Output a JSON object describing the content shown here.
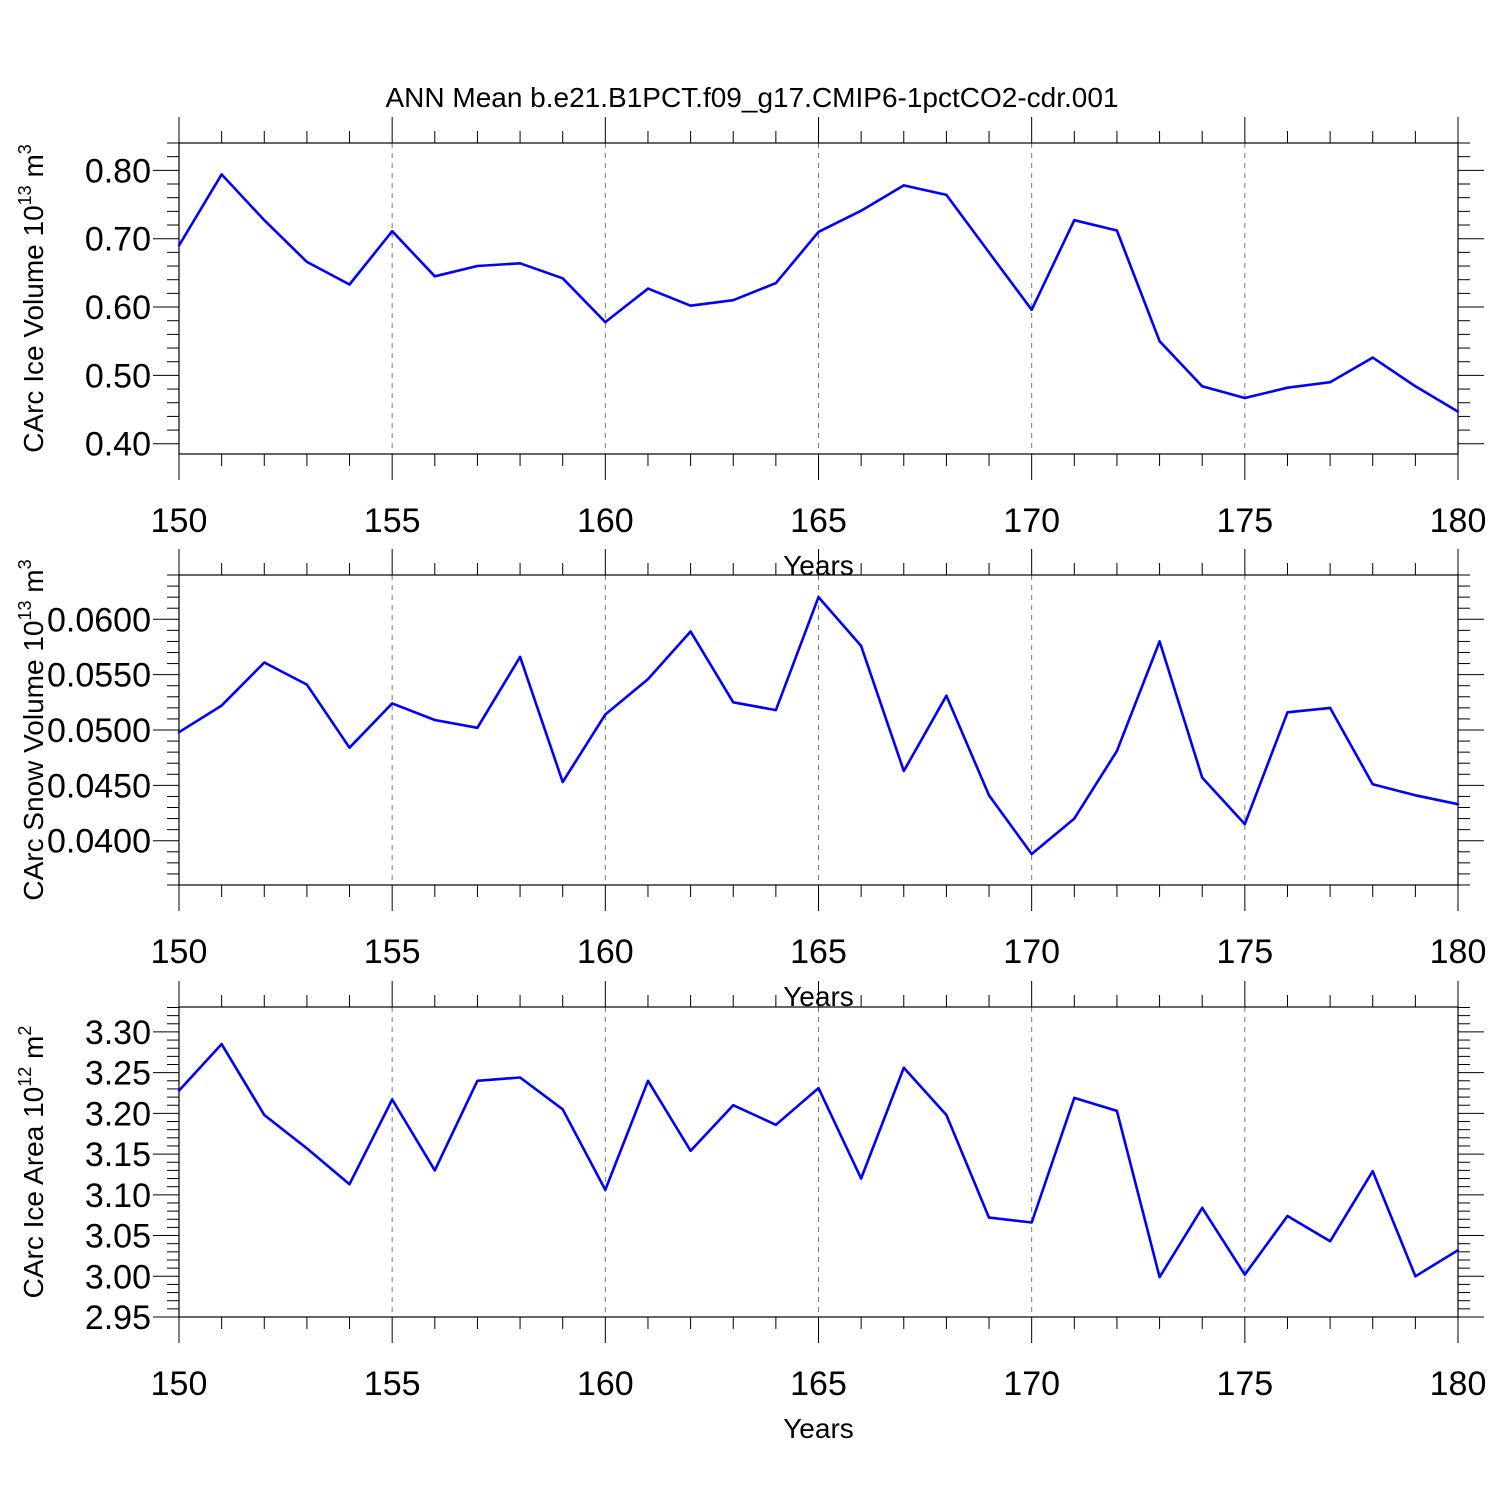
{
  "title": "ANN Mean b.e21.B1PCT.f09_g17.CMIP6-1pctCO2-cdr.001",
  "colors": {
    "line": "#0000ff",
    "grid": "#777777"
  },
  "chart_data": [
    {
      "type": "line",
      "ylabel": "CArc Ice Volume 10",
      "ylabel_sup": "13",
      "ylabel_unit": " m",
      "ylabel_unit_sup": "3",
      "xlabel": "Years",
      "xlim": [
        150,
        180
      ],
      "ylim": [
        0.385,
        0.84
      ],
      "x_ticks": [
        150,
        155,
        160,
        165,
        170,
        175,
        180
      ],
      "x_tick_labels": [
        "150",
        "155",
        "160",
        "165",
        "170",
        "175",
        "180"
      ],
      "y_ticks": [
        0.4,
        0.5,
        0.6,
        0.7,
        0.8
      ],
      "y_tick_labels": [
        "0.40",
        "0.50",
        "0.60",
        "0.70",
        "0.80"
      ],
      "grid_x": true,
      "x": [
        150,
        151,
        152,
        153,
        154,
        155,
        156,
        157,
        158,
        159,
        160,
        161,
        162,
        163,
        164,
        165,
        166,
        167,
        168,
        169,
        170,
        171,
        172,
        173,
        174,
        175,
        176,
        177,
        178,
        179,
        180
      ],
      "values": [
        0.69,
        0.794,
        0.727,
        0.666,
        0.633,
        0.711,
        0.645,
        0.66,
        0.664,
        0.642,
        0.578,
        0.627,
        0.602,
        0.61,
        0.635,
        0.71,
        0.741,
        0.778,
        0.764,
        0.68,
        0.596,
        0.727,
        0.712,
        0.55,
        0.484,
        0.467,
        0.482,
        0.49,
        0.526,
        0.484,
        0.447
      ]
    },
    {
      "type": "line",
      "ylabel": "CArc Snow Volume 10",
      "ylabel_sup": "13",
      "ylabel_unit": " m",
      "ylabel_unit_sup": "3",
      "xlabel": "Years",
      "xlim": [
        150,
        180
      ],
      "ylim": [
        0.036,
        0.064
      ],
      "x_ticks": [
        150,
        155,
        160,
        165,
        170,
        175,
        180
      ],
      "x_tick_labels": [
        "150",
        "155",
        "160",
        "165",
        "170",
        "175",
        "180"
      ],
      "y_ticks": [
        0.04,
        0.045,
        0.05,
        0.055,
        0.06
      ],
      "y_tick_labels": [
        "0.0400",
        "0.0450",
        "0.0500",
        "0.0550",
        "0.0600"
      ],
      "grid_x": true,
      "x": [
        150,
        151,
        152,
        153,
        154,
        155,
        156,
        157,
        158,
        159,
        160,
        161,
        162,
        163,
        164,
        165,
        166,
        167,
        168,
        169,
        170,
        171,
        172,
        173,
        174,
        175,
        176,
        177,
        178,
        179,
        180
      ],
      "values": [
        0.0498,
        0.0522,
        0.0561,
        0.0541,
        0.0484,
        0.0524,
        0.0509,
        0.0502,
        0.0566,
        0.0453,
        0.0514,
        0.0546,
        0.0589,
        0.0525,
        0.0518,
        0.062,
        0.0576,
        0.0463,
        0.0531,
        0.0441,
        0.0388,
        0.042,
        0.0481,
        0.058,
        0.0457,
        0.0415,
        0.0516,
        0.052,
        0.0451,
        0.0441,
        0.0433
      ]
    },
    {
      "type": "line",
      "ylabel": "CArc Ice Area 10",
      "ylabel_sup": "12",
      "ylabel_unit": " m",
      "ylabel_unit_sup": "2",
      "xlabel": "Years",
      "xlim": [
        150,
        180
      ],
      "ylim": [
        2.95,
        3.3306
      ],
      "x_ticks": [
        150,
        155,
        160,
        165,
        170,
        175,
        180
      ],
      "x_tick_labels": [
        "150",
        "155",
        "160",
        "165",
        "170",
        "175",
        "180"
      ],
      "y_ticks": [
        2.95,
        3.0,
        3.05,
        3.1,
        3.15,
        3.2,
        3.25,
        3.3
      ],
      "y_tick_labels": [
        "2.95",
        "3.00",
        "3.05",
        "3.10",
        "3.15",
        "3.20",
        "3.25",
        "3.30"
      ],
      "grid_x": true,
      "x": [
        150,
        151,
        152,
        153,
        154,
        155,
        156,
        157,
        158,
        159,
        160,
        161,
        162,
        163,
        164,
        165,
        166,
        167,
        168,
        169,
        170,
        171,
        172,
        173,
        174,
        175,
        176,
        177,
        178,
        179,
        180
      ],
      "values": [
        3.228,
        3.285,
        3.198,
        3.157,
        3.113,
        3.217,
        3.13,
        3.24,
        3.244,
        3.205,
        3.106,
        3.24,
        3.154,
        3.21,
        3.186,
        3.231,
        3.12,
        3.256,
        3.198,
        3.072,
        3.066,
        3.219,
        3.203,
        2.999,
        3.084,
        3.002,
        3.074,
        3.043,
        3.129,
        3.0,
        3.032
      ]
    }
  ]
}
